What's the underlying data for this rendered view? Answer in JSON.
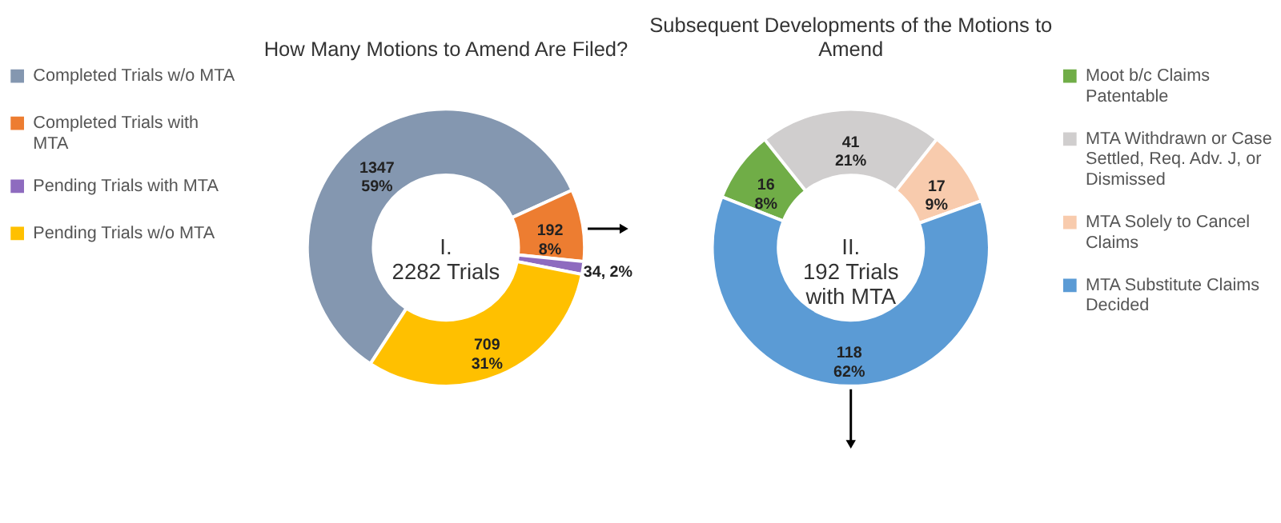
{
  "chart_data": [
    {
      "type": "donut",
      "title": "How Many Motions to Amend Are Filed?",
      "categories": [
        "Completed Trials w/o MTA",
        "Completed Trials with MTA",
        "Pending Trials with MTA",
        "Pending Trials w/o MTA"
      ],
      "values": [
        1347,
        192,
        34,
        709
      ],
      "colors": [
        "#8497b0",
        "#ed7d31",
        "#8e6bbf",
        "#ffc000"
      ],
      "value_labels": [
        "1347\n59%",
        "192\n8%",
        "34, 2%",
        "709\n31%"
      ],
      "annotations": [
        "I.\n2282 Trials"
      ],
      "legend": "left"
    },
    {
      "type": "donut",
      "title": "Subsequent Developments of the Motions to Amend",
      "categories": [
        "Moot b/c Claims Patentable",
        "MTA Withdrawn or Case Settled, Req. Adv. J, or Dismissed",
        "MTA Solely to Cancel Claims",
        "MTA Substitute Claims Decided"
      ],
      "values": [
        16,
        41,
        17,
        118
      ],
      "colors": [
        "#70ad47",
        "#d0cece",
        "#f8cbad",
        "#5b9bd5"
      ],
      "value_labels": [
        "16\n8%",
        "41\n21%",
        "17\n9%",
        "118\n62%"
      ],
      "annotations": [
        "II.\n192 Trials\nwith MTA"
      ],
      "legend": "right"
    }
  ]
}
